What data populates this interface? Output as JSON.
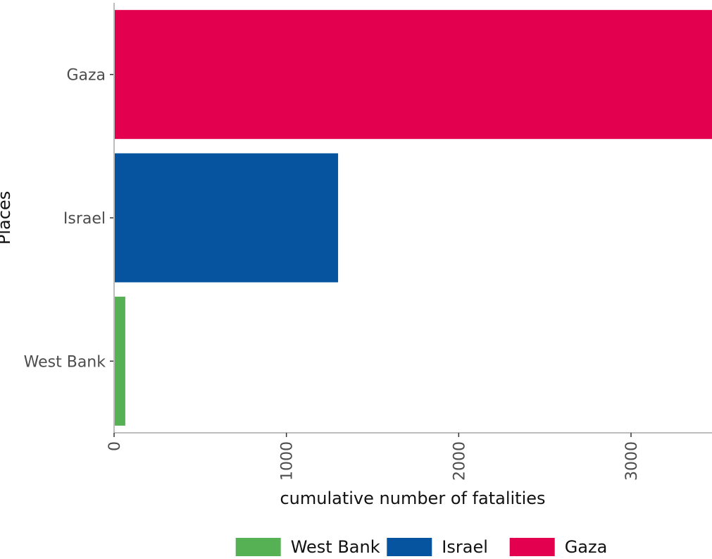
{
  "chart_data": {
    "type": "bar",
    "orientation": "horizontal",
    "categories": [
      "Gaza",
      "Israel",
      "West Bank"
    ],
    "values": [
      3470,
      1300,
      65
    ],
    "colors": {
      "Gaza": "#e3004f",
      "Israel": "#06539f",
      "West Bank": "#56b054"
    },
    "xlabel": "cumulative number of fatalities",
    "ylabel": "Places",
    "xlim": [
      0,
      3470
    ],
    "xticks": [
      0,
      1000,
      2000,
      3000
    ],
    "grid": false,
    "legend": {
      "position": "bottom",
      "entries": [
        "West Bank",
        "Israel",
        "Gaza"
      ]
    }
  }
}
